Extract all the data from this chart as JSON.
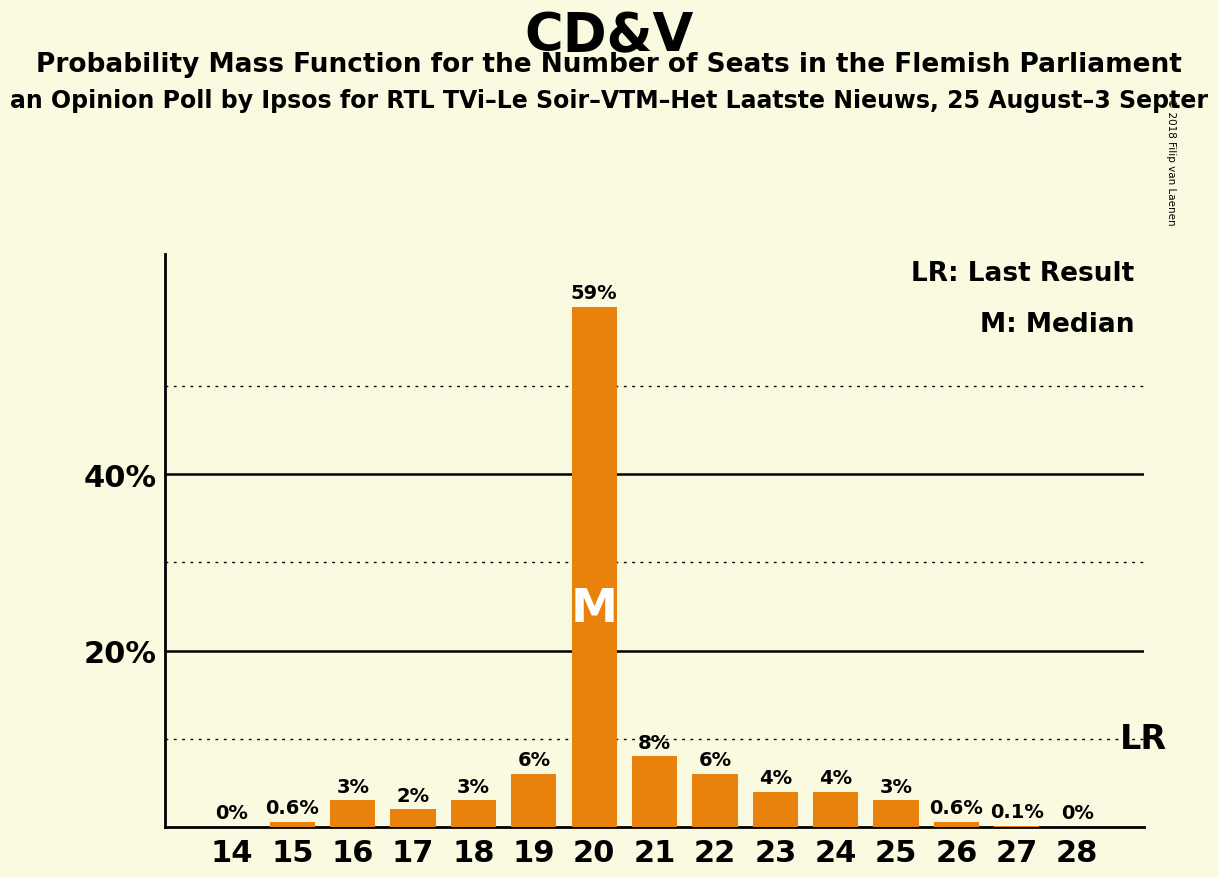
{
  "title": "CD&V",
  "subtitle1": "Probability Mass Function for the Number of Seats in the Flemish Parliament",
  "subtitle2": "an Opinion Poll by Ipsos for RTL TVi–Le Soir–VTM–Het Laatste Nieuws, 25 August–3 Septer",
  "copyright": "© 2018 Filip van Laenen",
  "seats": [
    14,
    15,
    16,
    17,
    18,
    19,
    20,
    21,
    22,
    23,
    24,
    25,
    26,
    27,
    28
  ],
  "values": [
    0.0,
    0.6,
    3.0,
    2.0,
    3.0,
    6.0,
    59.0,
    8.0,
    6.0,
    4.0,
    4.0,
    3.0,
    0.6,
    0.1,
    0.0
  ],
  "bar_labels": [
    "0%",
    "0.6%",
    "3%",
    "2%",
    "3%",
    "6%",
    "59%",
    "8%",
    "6%",
    "4%",
    "4%",
    "3%",
    "0.6%",
    "0.1%",
    "0%"
  ],
  "bar_color": "#E8820C",
  "background_color": "#FAFAE0",
  "median_seat": 20,
  "median_label": "M",
  "lr_seat": 26,
  "lr_label": "LR",
  "lr_legend": "LR: Last Result",
  "m_legend": "M: Median",
  "ymax": 65,
  "title_fontsize": 38,
  "subtitle1_fontsize": 19,
  "subtitle2_fontsize": 17,
  "bar_label_fontsize": 14,
  "axis_tick_fontsize": 22,
  "ytick_label_fontsize": 22,
  "legend_fontsize": 19,
  "lr_inline_fontsize": 24,
  "median_inside_fontsize": 34
}
